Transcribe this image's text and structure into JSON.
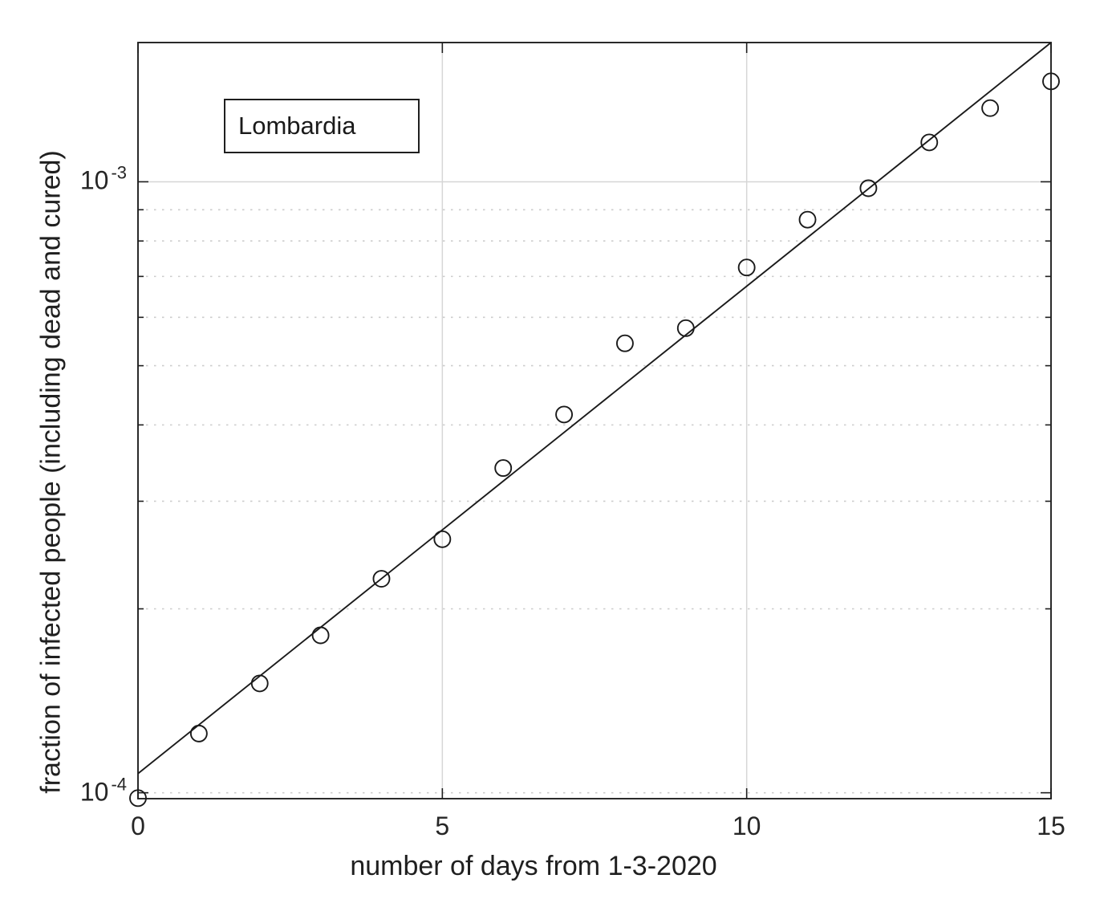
{
  "colors": {
    "background": "#ffffff",
    "axis": "#1f1f1f",
    "major_grid": "#d6d6d6",
    "minor_grid": "#cccccc",
    "marker": "#1a1a1a",
    "fit_line": "#1a1a1a",
    "text": "#1f1f1f"
  },
  "chart_data": {
    "type": "scatter",
    "title": "",
    "xlabel": "number of days from 1-3-2020",
    "ylabel": "fraction of infected people (including dead and cured)",
    "legend": {
      "label": "Lombardia",
      "position": "top-left"
    },
    "yscale": "log",
    "xlim": [
      0,
      15
    ],
    "ylim": [
      9.78e-05,
      0.00169
    ],
    "grid": true,
    "x": [
      0,
      1,
      2,
      3,
      4,
      5,
      6,
      7,
      8,
      9,
      10,
      11,
      12,
      13,
      14,
      15
    ],
    "series": [
      {
        "name": "Lombardia infected fraction",
        "style": "open-circle-markers",
        "values": [
          9.8e-05,
          0.000125,
          0.000151,
          0.000181,
          0.000224,
          0.00026,
          0.00034,
          0.000416,
          0.000544,
          0.000576,
          0.000724,
          0.000867,
          0.000976,
          0.00116,
          0.00132,
          0.00146
        ]
      },
      {
        "name": "exponential fit",
        "style": "solid-line",
        "x": [
          0,
          15
        ],
        "values": [
          0.0001075,
          0.00169
        ]
      }
    ],
    "x_ticks": [
      {
        "value": 0,
        "label": "0"
      },
      {
        "value": 5,
        "label": "5"
      },
      {
        "value": 10,
        "label": "10"
      },
      {
        "value": 15,
        "label": "15"
      }
    ],
    "y_ticks": [
      {
        "value": 0.0001,
        "base": "10",
        "exp": "-4"
      },
      {
        "value": 0.001,
        "base": "10",
        "exp": "-3"
      }
    ],
    "x_solid_gridlines": [
      5,
      10
    ],
    "y_solid_gridlines": [
      0.001
    ],
    "y_dotted_gridlines": [
      0.0001,
      0.0002,
      0.0003,
      0.0004,
      0.0005,
      0.0006,
      0.0007,
      0.0008,
      0.0009
    ],
    "y_minor_ticks": [
      0.0002,
      0.0003,
      0.0004,
      0.0005,
      0.0006,
      0.0007,
      0.0008,
      0.0009
    ]
  }
}
